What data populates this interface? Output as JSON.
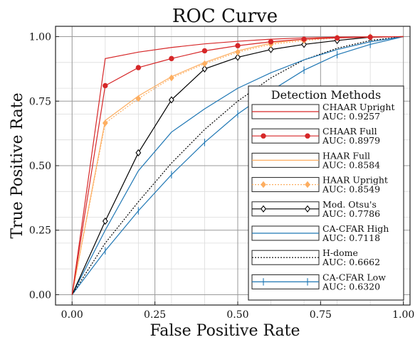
{
  "chart_data": {
    "type": "line",
    "title": "ROC Curve",
    "xlabel": "False Positive Rate",
    "ylabel": "True Positive Rate",
    "xlim": [
      -0.05,
      1.02
    ],
    "ylim": [
      -0.04,
      1.04
    ],
    "xticks": [
      "0.00",
      "0.25",
      "0.50",
      "0.75",
      "1.00"
    ],
    "yticks": [
      "0.00",
      "0.25",
      "0.50",
      "0.75",
      "1.00"
    ],
    "x_tick_values": [
      0,
      0.25,
      0.5,
      0.75,
      1.0
    ],
    "y_tick_values": [
      0,
      0.25,
      0.5,
      0.75,
      1.0
    ],
    "minor_grid_step": 0.1,
    "grid": true,
    "legend": {
      "title": "Detection Methods",
      "placement": "lower-right"
    },
    "series": [
      {
        "name": "CHAAR Upright",
        "auc": "AUC: 0.9257",
        "color": "#d62728",
        "dash": "solid",
        "marker": "none",
        "x": [
          0,
          0.1,
          0.2,
          0.3,
          0.4,
          0.5,
          0.6,
          0.7,
          0.8,
          0.9,
          1.0
        ],
        "y": [
          0,
          0.915,
          0.94,
          0.958,
          0.972,
          0.982,
          0.99,
          0.995,
          0.998,
          0.999,
          1.0
        ]
      },
      {
        "name": "CHAAR Full",
        "auc": "AUC: 0.8979",
        "color": "#d62728",
        "dash": "solid",
        "marker": "dot",
        "x": [
          0,
          0.1,
          0.2,
          0.3,
          0.4,
          0.5,
          0.6,
          0.7,
          0.8,
          0.9,
          1.0
        ],
        "y": [
          0,
          0.81,
          0.88,
          0.915,
          0.945,
          0.965,
          0.98,
          0.99,
          0.995,
          0.998,
          1.0
        ]
      },
      {
        "name": "HAAR Full",
        "auc": "AUC: 0.8584",
        "color": "#fdae61",
        "dash": "solid",
        "marker": "none",
        "x": [
          0,
          0.1,
          0.2,
          0.3,
          0.4,
          0.5,
          0.6,
          0.7,
          0.8,
          0.9,
          1.0
        ],
        "y": [
          0,
          0.675,
          0.77,
          0.845,
          0.9,
          0.945,
          0.975,
          0.99,
          0.997,
          0.999,
          1.0
        ]
      },
      {
        "name": "HAAR Upright",
        "auc": "AUC: 0.8549",
        "color": "#fdae61",
        "dash": "dotted",
        "marker": "diamond",
        "x": [
          0,
          0.1,
          0.2,
          0.3,
          0.4,
          0.5,
          0.6,
          0.7,
          0.8,
          0.9,
          1.0
        ],
        "y": [
          0,
          0.665,
          0.76,
          0.84,
          0.895,
          0.94,
          0.97,
          0.985,
          0.995,
          0.999,
          1.0
        ]
      },
      {
        "name": "Mod. Otsu's",
        "auc": "AUC: 0.7786",
        "color": "#000000",
        "dash": "solid",
        "marker": "open-diamond",
        "x": [
          0,
          0.1,
          0.2,
          0.3,
          0.4,
          0.5,
          0.6,
          0.7,
          0.8,
          0.9,
          1.0
        ],
        "y": [
          0,
          0.285,
          0.55,
          0.755,
          0.875,
          0.92,
          0.95,
          0.97,
          0.985,
          0.998,
          1.0
        ]
      },
      {
        "name": "CA-CFAR High",
        "auc": "AUC: 0.7118",
        "color": "#1f77b4",
        "dash": "solid",
        "marker": "none",
        "x": [
          0,
          0.1,
          0.2,
          0.3,
          0.4,
          0.5,
          0.6,
          0.7,
          0.8,
          0.9,
          1.0
        ],
        "y": [
          0,
          0.25,
          0.48,
          0.63,
          0.72,
          0.8,
          0.86,
          0.91,
          0.95,
          0.98,
          1.0
        ]
      },
      {
        "name": "H-dome",
        "auc": "AUC: 0.6662",
        "color": "#000000",
        "dash": "dotted",
        "marker": "none",
        "x": [
          0,
          0.1,
          0.2,
          0.3,
          0.4,
          0.5,
          0.6,
          0.7,
          0.8,
          0.9,
          1.0
        ],
        "y": [
          0,
          0.2,
          0.36,
          0.51,
          0.64,
          0.75,
          0.84,
          0.91,
          0.955,
          0.985,
          1.0
        ]
      },
      {
        "name": "CA-CFAR Low",
        "auc": "AUC: 0.6320",
        "color": "#1f77b4",
        "dash": "solid",
        "marker": "vbar",
        "x": [
          0,
          0.1,
          0.2,
          0.3,
          0.4,
          0.5,
          0.6,
          0.7,
          0.8,
          0.9,
          1.0
        ],
        "y": [
          0,
          0.17,
          0.325,
          0.465,
          0.59,
          0.7,
          0.79,
          0.87,
          0.93,
          0.97,
          1.0
        ]
      }
    ]
  }
}
